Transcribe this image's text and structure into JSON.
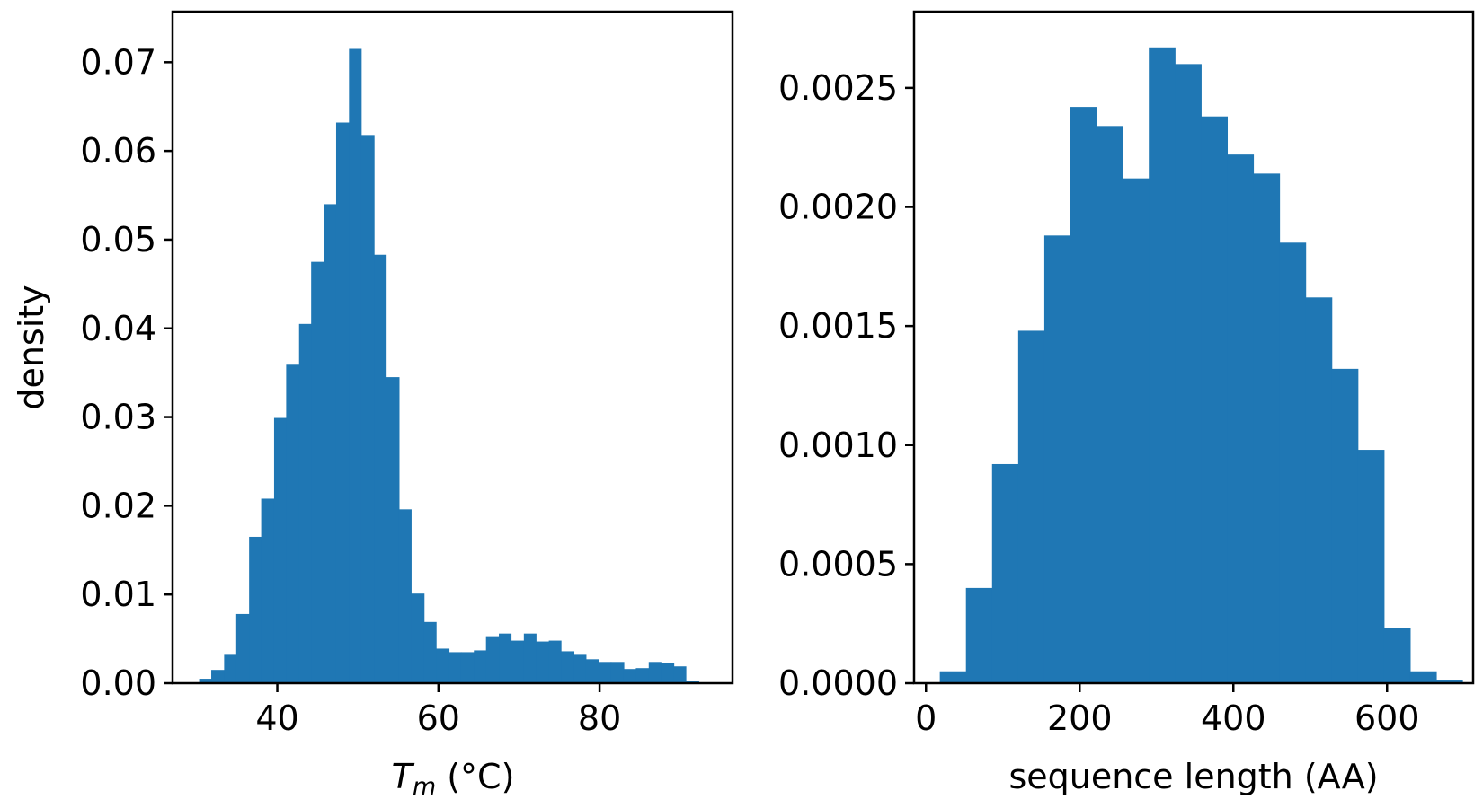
{
  "chart_data": [
    {
      "type": "bar",
      "subtype": "histogram",
      "title": "",
      "xlabel_main": "T",
      "xlabel_sub": "m",
      "xlabel_rest": " (°C)",
      "ylabel": "density",
      "xlim": [
        27.0,
        96.5
      ],
      "ylim": [
        0.0,
        0.0757
      ],
      "xticks": [
        40,
        60,
        80
      ],
      "xtick_labels": [
        "40",
        "60",
        "80"
      ],
      "yticks": [
        0.0,
        0.01,
        0.02,
        0.03,
        0.04,
        0.05,
        0.06,
        0.07
      ],
      "ytick_labels": [
        "0.00",
        "0.01",
        "0.02",
        "0.03",
        "0.04",
        "0.05",
        "0.06",
        "0.07"
      ],
      "color": "#1f77b4",
      "bin_edges": [
        30.3,
        31.8,
        33.4,
        34.9,
        36.5,
        38.0,
        39.6,
        41.1,
        42.7,
        44.2,
        45.8,
        47.3,
        48.9,
        50.4,
        52.0,
        53.5,
        55.1,
        56.6,
        58.2,
        59.7,
        61.3,
        62.8,
        64.4,
        65.9,
        67.5,
        69.0,
        70.6,
        72.1,
        73.7,
        75.2,
        76.8,
        78.3,
        79.9,
        81.4,
        83.0,
        84.5,
        86.1,
        87.6,
        89.2,
        90.7,
        92.3
      ],
      "values": [
        0.0005,
        0.0015,
        0.0032,
        0.0078,
        0.0165,
        0.0208,
        0.0299,
        0.0359,
        0.0405,
        0.0475,
        0.054,
        0.0632,
        0.0715,
        0.0618,
        0.0483,
        0.0345,
        0.0196,
        0.0101,
        0.0069,
        0.0039,
        0.0035,
        0.0035,
        0.0037,
        0.0053,
        0.0056,
        0.0048,
        0.0056,
        0.0047,
        0.0048,
        0.0036,
        0.0032,
        0.0027,
        0.0024,
        0.0024,
        0.0016,
        0.0017,
        0.0024,
        0.0023,
        0.0019,
        0.0003
      ]
    },
    {
      "type": "bar",
      "subtype": "histogram",
      "title": "",
      "xlabel": "sequence length (AA)",
      "ylabel": "",
      "xlim": [
        -15.5,
        712.0
      ],
      "ylim": [
        0.0,
        0.00282
      ],
      "xticks": [
        0,
        200,
        400,
        600
      ],
      "xtick_labels": [
        "0",
        "200",
        "400",
        "600"
      ],
      "yticks": [
        0.0,
        0.0005,
        0.001,
        0.0015,
        0.002,
        0.0025
      ],
      "ytick_labels": [
        "0.0000",
        "0.0005",
        "0.0010",
        "0.0015",
        "0.0020",
        "0.0025"
      ],
      "color": "#1f77b4",
      "bin_edges": [
        18.0,
        52.0,
        86.0,
        120.0,
        154.0,
        188.0,
        222.0,
        256.0,
        290.0,
        324.0,
        358.0,
        392.0,
        426.0,
        460.0,
        494.0,
        528.0,
        562.0,
        596.0,
        630.0,
        664.0,
        698.0
      ],
      "values": [
        5e-05,
        0.0004,
        0.00092,
        0.00148,
        0.00188,
        0.00242,
        0.00234,
        0.00212,
        0.00267,
        0.0026,
        0.00238,
        0.00222,
        0.00214,
        0.00185,
        0.00162,
        0.00132,
        0.00098,
        0.00023,
        5e-05,
        1.5e-05
      ]
    }
  ]
}
